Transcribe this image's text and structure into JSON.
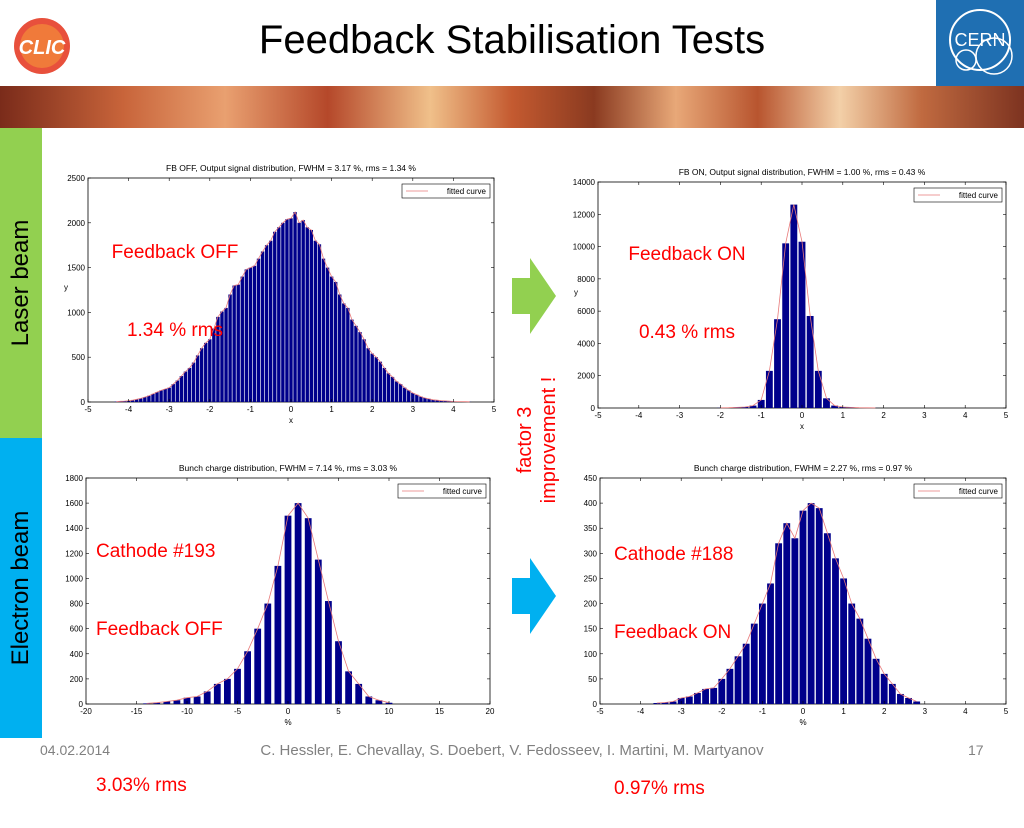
{
  "slide": {
    "title": "Feedback Stabilisation Tests",
    "logo_left": "CLIC",
    "logo_right": "CERN",
    "side_labels": {
      "laser": "Laser beam",
      "electron": "Electron beam"
    },
    "factor_text": [
      "factor 3",
      "improvement !"
    ],
    "footer": {
      "date": "04.02.2014",
      "authors": "C. Hessler, E. Chevallay, S. Doebert, V. Fedosseev, I. Martini, M. Martyanov",
      "page": "17"
    },
    "overlays": {
      "fb_off": [
        "Feedback OFF",
        "1.34 % rms"
      ],
      "fb_on": [
        "Feedback ON",
        "0.43 % rms"
      ],
      "cathode193": [
        "Cathode #193",
        "Feedback OFF",
        "",
        "3.03% rms"
      ],
      "cathode188": [
        "Cathode #188",
        "Feedback ON",
        "",
        "0.97% rms"
      ]
    },
    "colors": {
      "laser_bar": "#92d050",
      "electron_bar": "#00b0f0",
      "bar": "#00008b",
      "curve": "#e87a7a",
      "overlay": "#ff0000"
    }
  },
  "chart_data": [
    {
      "type": "bar",
      "title": "FB OFF, Output signal distribution, FWHM = 3.17 %, rms = 1.34 %",
      "xlabel": "x",
      "ylabel": "y",
      "xlim": [
        -5,
        5
      ],
      "ylim": [
        0,
        2500
      ],
      "xticks": [
        -5,
        -4,
        -3,
        -2,
        -1,
        0,
        1,
        2,
        3,
        4,
        5
      ],
      "yticks": [
        0,
        500,
        1000,
        1500,
        2000,
        2500
      ],
      "legend": "fitted curve",
      "bar_width": 0.1,
      "x": [
        -4.3,
        -4.2,
        -4.1,
        -4.0,
        -3.9,
        -3.8,
        -3.7,
        -3.6,
        -3.5,
        -3.4,
        -3.3,
        -3.2,
        -3.1,
        -3.0,
        -2.9,
        -2.8,
        -2.7,
        -2.6,
        -2.5,
        -2.4,
        -2.3,
        -2.2,
        -2.1,
        -2.0,
        -1.9,
        -1.8,
        -1.7,
        -1.6,
        -1.5,
        -1.4,
        -1.3,
        -1.2,
        -1.1,
        -1.0,
        -0.9,
        -0.8,
        -0.7,
        -0.6,
        -0.5,
        -0.4,
        -0.3,
        -0.2,
        -0.1,
        0.0,
        0.1,
        0.2,
        0.3,
        0.4,
        0.5,
        0.6,
        0.7,
        0.8,
        0.9,
        1.0,
        1.1,
        1.2,
        1.3,
        1.4,
        1.5,
        1.6,
        1.7,
        1.8,
        1.9,
        2.0,
        2.1,
        2.2,
        2.3,
        2.4,
        2.5,
        2.6,
        2.7,
        2.8,
        2.9,
        3.0,
        3.1,
        3.2,
        3.3,
        3.4,
        3.5,
        3.6,
        3.7,
        3.8,
        3.9,
        4.0,
        4.1,
        4.2,
        4.3,
        4.4
      ],
      "values": [
        5,
        8,
        10,
        15,
        20,
        30,
        40,
        55,
        70,
        90,
        110,
        130,
        145,
        160,
        200,
        240,
        290,
        340,
        380,
        440,
        520,
        600,
        660,
        700,
        820,
        950,
        1010,
        1050,
        1200,
        1300,
        1310,
        1400,
        1480,
        1500,
        1520,
        1600,
        1680,
        1750,
        1800,
        1900,
        1950,
        2000,
        2040,
        2050,
        2120,
        2000,
        2030,
        1950,
        1920,
        1800,
        1760,
        1600,
        1500,
        1400,
        1340,
        1200,
        1100,
        1050,
        920,
        850,
        780,
        700,
        600,
        540,
        500,
        450,
        380,
        320,
        280,
        230,
        200,
        160,
        130,
        100,
        80,
        60,
        45,
        35,
        25,
        20,
        15,
        12,
        9,
        6,
        5,
        4,
        3,
        2
      ]
    },
    {
      "type": "bar",
      "title": "FB ON, Output signal distribution, FWHM = 1.00 %, rms = 0.43 %",
      "xlabel": "x",
      "ylabel": "y",
      "xlim": [
        -5,
        5
      ],
      "ylim": [
        0,
        14000
      ],
      "xticks": [
        -5,
        -4,
        -3,
        -2,
        -1,
        0,
        1,
        2,
        3,
        4,
        5
      ],
      "yticks": [
        0,
        2000,
        4000,
        6000,
        8000,
        10000,
        12000,
        14000
      ],
      "legend": "fitted curve",
      "bar_width": 0.2,
      "x": [
        -2.0,
        -1.8,
        -1.6,
        -1.4,
        -1.2,
        -1.0,
        -0.8,
        -0.6,
        -0.4,
        -0.2,
        0.0,
        0.2,
        0.4,
        0.6,
        0.8,
        1.0,
        1.2,
        1.4,
        1.6,
        1.8
      ],
      "values": [
        10,
        20,
        40,
        60,
        150,
        500,
        2300,
        5500,
        10200,
        12600,
        10300,
        5700,
        2300,
        600,
        150,
        60,
        40,
        20,
        10,
        5
      ]
    },
    {
      "type": "bar",
      "title": "Bunch charge distribution, FWHM = 7.14 %, rms = 3.03 %",
      "xlabel": "%",
      "ylabel": "",
      "xlim": [
        -20,
        20
      ],
      "ylim": [
        0,
        1800
      ],
      "xticks": [
        -20,
        -15,
        -10,
        -5,
        0,
        5,
        10,
        15,
        20
      ],
      "yticks": [
        0,
        200,
        400,
        600,
        800,
        1000,
        1200,
        1400,
        1600,
        1800
      ],
      "legend": "fitted curve",
      "bar_width": 0.8,
      "x": [
        -14,
        -13,
        -12,
        -11,
        -10,
        -9,
        -8,
        -7,
        -6,
        -5,
        -4,
        -3,
        -2,
        -1,
        0,
        1,
        2,
        3,
        4,
        5,
        6,
        7,
        8,
        9,
        10
      ],
      "values": [
        5,
        10,
        20,
        30,
        50,
        60,
        100,
        160,
        200,
        280,
        420,
        600,
        800,
        1100,
        1500,
        1600,
        1480,
        1150,
        820,
        500,
        260,
        160,
        60,
        30,
        10
      ]
    },
    {
      "type": "bar",
      "title": "Bunch charge distribution, FWHM = 2.27 %, rms = 0.97 %",
      "xlabel": "%",
      "ylabel": "",
      "xlim": [
        -5,
        5
      ],
      "ylim": [
        0,
        450
      ],
      "xticks": [
        -5,
        -4,
        -3,
        -2,
        -1,
        0,
        1,
        2,
        3,
        4,
        5
      ],
      "yticks": [
        0,
        50,
        100,
        150,
        200,
        250,
        300,
        350,
        400,
        450
      ],
      "legend": "fitted curve",
      "bar_width": 0.2,
      "x": [
        -3.6,
        -3.4,
        -3.2,
        -3.0,
        -2.8,
        -2.6,
        -2.4,
        -2.2,
        -2.0,
        -1.8,
        -1.6,
        -1.4,
        -1.2,
        -1.0,
        -0.8,
        -0.6,
        -0.4,
        -0.2,
        0.0,
        0.2,
        0.4,
        0.6,
        0.8,
        1.0,
        1.2,
        1.4,
        1.6,
        1.8,
        2.0,
        2.2,
        2.4,
        2.6,
        2.8
      ],
      "values": [
        2,
        3,
        5,
        12,
        15,
        22,
        30,
        32,
        50,
        70,
        95,
        120,
        160,
        200,
        240,
        320,
        360,
        330,
        385,
        400,
        390,
        340,
        290,
        250,
        200,
        170,
        130,
        90,
        60,
        40,
        20,
        12,
        5
      ]
    }
  ]
}
